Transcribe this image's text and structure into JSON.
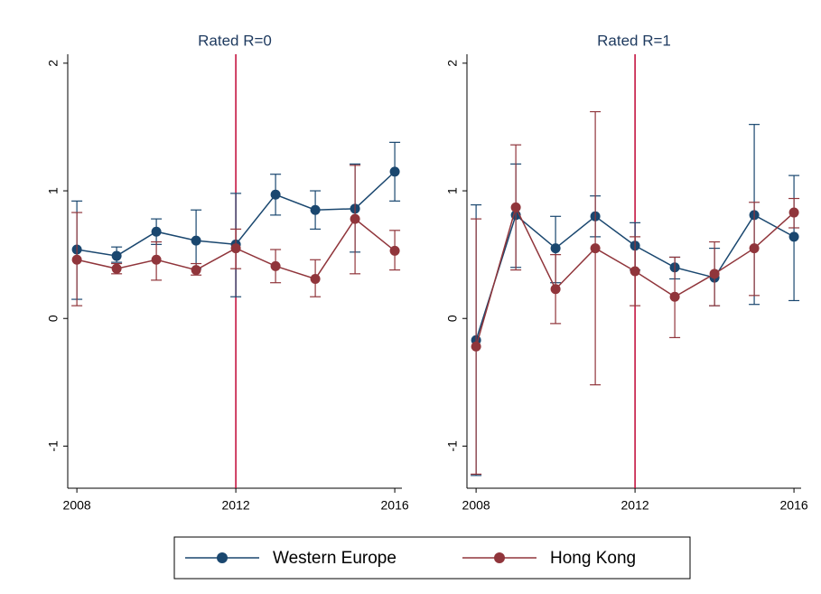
{
  "chart_data": [
    {
      "type": "line",
      "title": "Rated R=0",
      "x": [
        2008,
        2009,
        2010,
        2011,
        2012,
        2013,
        2014,
        2015,
        2016
      ],
      "xlim": [
        2007.77,
        2016.18
      ],
      "xticks": [
        2008,
        2012,
        2016
      ],
      "ylim": [
        -1.33,
        2.07
      ],
      "yticks": [
        -1,
        0,
        1,
        2
      ],
      "vline": 2012,
      "vline_color": "#c10534",
      "series": [
        {
          "name": "Western Europe",
          "color": "#1a476f",
          "values": [
            0.54,
            0.49,
            0.68,
            0.61,
            0.58,
            0.97,
            0.85,
            0.86,
            1.15
          ],
          "lower": [
            0.15,
            0.44,
            0.58,
            0.39,
            0.17,
            0.81,
            0.7,
            0.52,
            0.92
          ],
          "upper": [
            0.92,
            0.56,
            0.78,
            0.85,
            0.98,
            1.13,
            1.0,
            1.21,
            1.38
          ]
        },
        {
          "name": "Hong Kong",
          "color": "#90353b",
          "values": [
            0.46,
            0.39,
            0.46,
            0.38,
            0.55,
            0.41,
            0.31,
            0.78,
            0.53
          ],
          "lower": [
            0.1,
            0.35,
            0.3,
            0.34,
            0.39,
            0.28,
            0.17,
            0.35,
            0.38
          ],
          "upper": [
            0.83,
            0.43,
            0.6,
            0.43,
            0.7,
            0.54,
            0.46,
            1.2,
            0.69
          ]
        }
      ]
    },
    {
      "type": "line",
      "title": "Rated R=1",
      "x": [
        2008,
        2009,
        2010,
        2011,
        2012,
        2013,
        2014,
        2015,
        2016
      ],
      "xlim": [
        2007.77,
        2016.18
      ],
      "xticks": [
        2008,
        2012,
        2016
      ],
      "ylim": [
        -1.33,
        2.07
      ],
      "yticks": [
        -1,
        0,
        1,
        2
      ],
      "vline": 2012,
      "vline_color": "#c10534",
      "series": [
        {
          "color": "#1a476f",
          "values": [
            -0.17,
            0.81,
            0.55,
            0.8,
            0.57,
            0.4,
            0.32,
            0.81,
            0.64
          ],
          "lower": [
            -1.23,
            0.4,
            0.28,
            0.64,
            0.38,
            0.31,
            0.1,
            0.11,
            0.14
          ],
          "upper": [
            0.89,
            1.21,
            0.8,
            0.96,
            0.75,
            0.48,
            0.55,
            1.52,
            1.12
          ]
        },
        {
          "color": "#90353b",
          "values": [
            -0.22,
            0.87,
            0.23,
            0.55,
            0.37,
            0.17,
            0.35,
            0.55,
            0.83
          ],
          "lower": [
            -1.22,
            0.38,
            -0.04,
            -0.52,
            0.1,
            -0.15,
            0.1,
            0.18,
            0.71
          ],
          "upper": [
            0.78,
            1.36,
            0.5,
            1.62,
            0.64,
            0.48,
            0.6,
            0.91,
            0.94
          ]
        }
      ]
    }
  ]
}
